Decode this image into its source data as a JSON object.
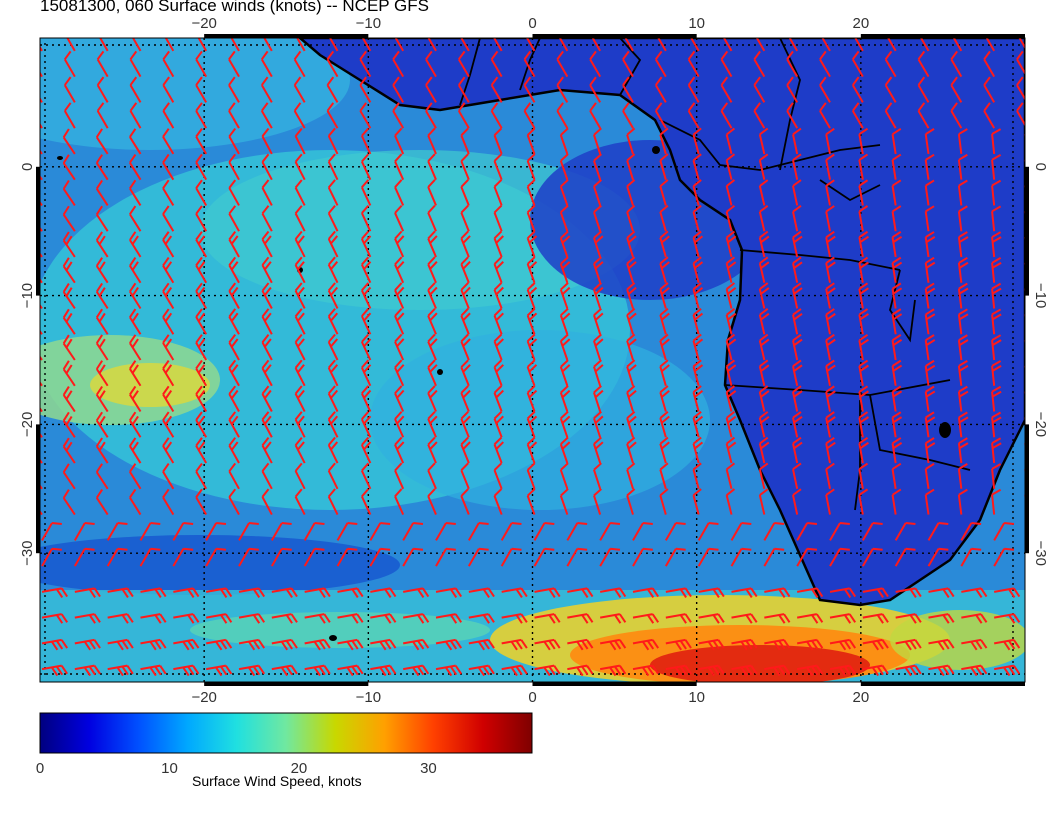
{
  "title": "15081300, 060 Surface winds (knots) -- NCEP GFS",
  "map": {
    "lon_range": [
      -30,
      30
    ],
    "lat_range": [
      -40,
      10
    ],
    "lon_ticks": [
      -20,
      -10,
      0,
      10,
      20
    ],
    "lat_ticks": [
      0,
      -10,
      -20,
      -30
    ],
    "lon_tick_labels": [
      "−20",
      "−10",
      "0",
      "10",
      "20"
    ],
    "lat_tick_labels": [
      "0",
      "−10",
      "−20",
      "−30"
    ],
    "gridlines": "dotted",
    "barb_color": "#ff1a1a",
    "coastline_color": "#000000"
  },
  "colorbar": {
    "label": "Surface Wind Speed, knots",
    "range": [
      0,
      38
    ],
    "tick_values": [
      0,
      10,
      20,
      30
    ],
    "tick_labels": [
      "0",
      "10",
      "20",
      "30"
    ],
    "colors": [
      "#00007f",
      "#0000e0",
      "#0050ff",
      "#00a8ff",
      "#20e0e0",
      "#70e8a0",
      "#c8d800",
      "#ffa000",
      "#ff4000",
      "#d00000",
      "#7f0000"
    ]
  }
}
